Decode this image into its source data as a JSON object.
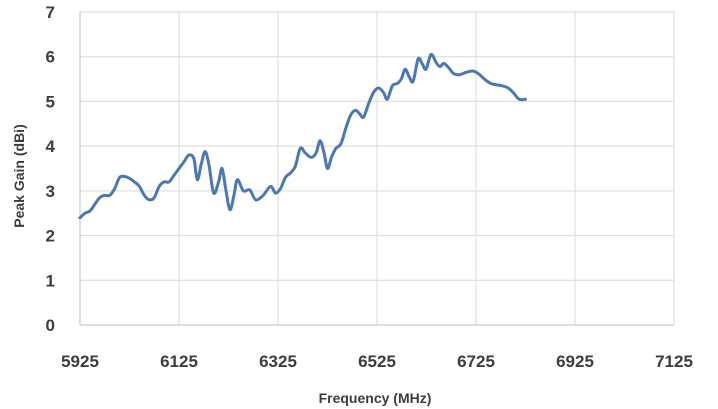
{
  "chart_data": {
    "type": "line",
    "title": "",
    "xlabel": "Frequency (MHz)",
    "ylabel": "Peak Gain (dBi)",
    "xlim": [
      5925,
      7125
    ],
    "ylim": [
      0,
      7
    ],
    "x_ticks": [
      "5925",
      "6125",
      "6325",
      "6525",
      "6725",
      "6925",
      "7125"
    ],
    "y_ticks": [
      "0",
      "1",
      "2",
      "3",
      "4",
      "5",
      "6",
      "7"
    ],
    "grid": true,
    "legend": "none",
    "colors": {
      "line": "#4a78b5",
      "grid": "#d9d9d9",
      "axis": "#bfbfbf",
      "text": "#3d3d3d"
    },
    "series": [
      {
        "values": [
          [
            5925,
            2.4
          ],
          [
            5935,
            2.5
          ],
          [
            5945,
            2.55
          ],
          [
            5955,
            2.7
          ],
          [
            5965,
            2.85
          ],
          [
            5975,
            2.9
          ],
          [
            5985,
            2.9
          ],
          [
            5995,
            3.05
          ],
          [
            6005,
            3.3
          ],
          [
            6015,
            3.32
          ],
          [
            6025,
            3.28
          ],
          [
            6035,
            3.2
          ],
          [
            6045,
            3.1
          ],
          [
            6055,
            2.9
          ],
          [
            6065,
            2.8
          ],
          [
            6075,
            2.85
          ],
          [
            6085,
            3.1
          ],
          [
            6095,
            3.2
          ],
          [
            6105,
            3.2
          ],
          [
            6115,
            3.35
          ],
          [
            6125,
            3.5
          ],
          [
            6135,
            3.65
          ],
          [
            6145,
            3.8
          ],
          [
            6155,
            3.72
          ],
          [
            6162,
            3.25
          ],
          [
            6170,
            3.6
          ],
          [
            6178,
            3.88
          ],
          [
            6186,
            3.55
          ],
          [
            6195,
            2.95
          ],
          [
            6205,
            3.2
          ],
          [
            6212,
            3.5
          ],
          [
            6220,
            3.0
          ],
          [
            6228,
            2.58
          ],
          [
            6236,
            2.9
          ],
          [
            6243,
            3.25
          ],
          [
            6255,
            3.0
          ],
          [
            6268,
            3.02
          ],
          [
            6280,
            2.8
          ],
          [
            6295,
            2.9
          ],
          [
            6310,
            3.1
          ],
          [
            6320,
            2.95
          ],
          [
            6330,
            3.05
          ],
          [
            6340,
            3.3
          ],
          [
            6350,
            3.4
          ],
          [
            6360,
            3.55
          ],
          [
            6370,
            3.95
          ],
          [
            6380,
            3.85
          ],
          [
            6392,
            3.75
          ],
          [
            6402,
            3.85
          ],
          [
            6410,
            4.12
          ],
          [
            6418,
            3.85
          ],
          [
            6425,
            3.5
          ],
          [
            6433,
            3.75
          ],
          [
            6442,
            3.95
          ],
          [
            6452,
            4.05
          ],
          [
            6462,
            4.4
          ],
          [
            6472,
            4.7
          ],
          [
            6482,
            4.8
          ],
          [
            6490,
            4.72
          ],
          [
            6498,
            4.65
          ],
          [
            6508,
            4.95
          ],
          [
            6518,
            5.2
          ],
          [
            6528,
            5.3
          ],
          [
            6538,
            5.2
          ],
          [
            6546,
            5.05
          ],
          [
            6556,
            5.35
          ],
          [
            6566,
            5.4
          ],
          [
            6574,
            5.5
          ],
          [
            6582,
            5.72
          ],
          [
            6590,
            5.55
          ],
          [
            6598,
            5.45
          ],
          [
            6608,
            5.95
          ],
          [
            6616,
            5.85
          ],
          [
            6624,
            5.72
          ],
          [
            6634,
            6.05
          ],
          [
            6644,
            5.88
          ],
          [
            6652,
            5.78
          ],
          [
            6660,
            5.85
          ],
          [
            6670,
            5.75
          ],
          [
            6680,
            5.62
          ],
          [
            6692,
            5.6
          ],
          [
            6705,
            5.65
          ],
          [
            6718,
            5.68
          ],
          [
            6730,
            5.62
          ],
          [
            6742,
            5.5
          ],
          [
            6755,
            5.4
          ],
          [
            6767,
            5.37
          ],
          [
            6778,
            5.35
          ],
          [
            6790,
            5.3
          ],
          [
            6800,
            5.2
          ],
          [
            6812,
            5.05
          ],
          [
            6825,
            5.05
          ]
        ]
      }
    ]
  }
}
